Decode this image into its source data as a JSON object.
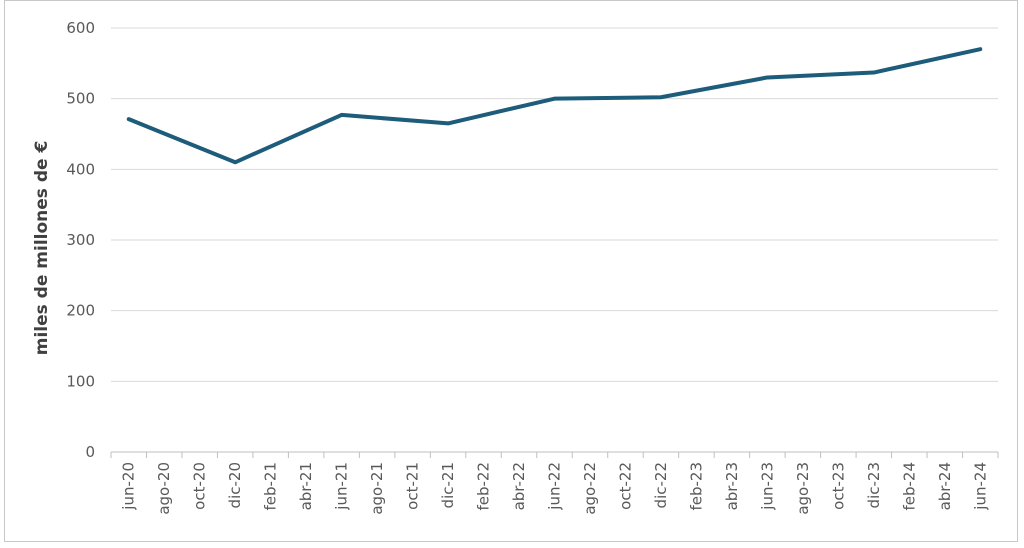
{
  "chart_data": {
    "type": "line",
    "title": "",
    "xlabel": "",
    "ylabel": "miles de millones de €",
    "ylim": [
      0,
      600
    ],
    "yticks": [
      0,
      100,
      200,
      300,
      400,
      500,
      600
    ],
    "grid": true,
    "legend": "none",
    "series_color": "#1d5c7a",
    "x": [
      "jun-20",
      "ago-20",
      "oct-20",
      "dic-20",
      "feb-21",
      "abr-21",
      "jun-21",
      "ago-21",
      "oct-21",
      "dic-21",
      "feb-22",
      "abr-22",
      "jun-22",
      "ago-22",
      "oct-22",
      "dic-22",
      "feb-23",
      "abr-23",
      "jun-23",
      "ago-23",
      "oct-23",
      "dic-23",
      "feb-24",
      "abr-24",
      "jun-24"
    ],
    "series": [
      {
        "points": [
          {
            "x": "jun-20",
            "y": 471
          },
          {
            "x": "dic-20",
            "y": 410
          },
          {
            "x": "jun-21",
            "y": 477
          },
          {
            "x": "dic-21",
            "y": 465
          },
          {
            "x": "jun-22",
            "y": 500
          },
          {
            "x": "dic-22",
            "y": 502
          },
          {
            "x": "jun-23",
            "y": 530
          },
          {
            "x": "dic-23",
            "y": 537
          },
          {
            "x": "jun-24",
            "y": 570
          }
        ]
      }
    ]
  }
}
